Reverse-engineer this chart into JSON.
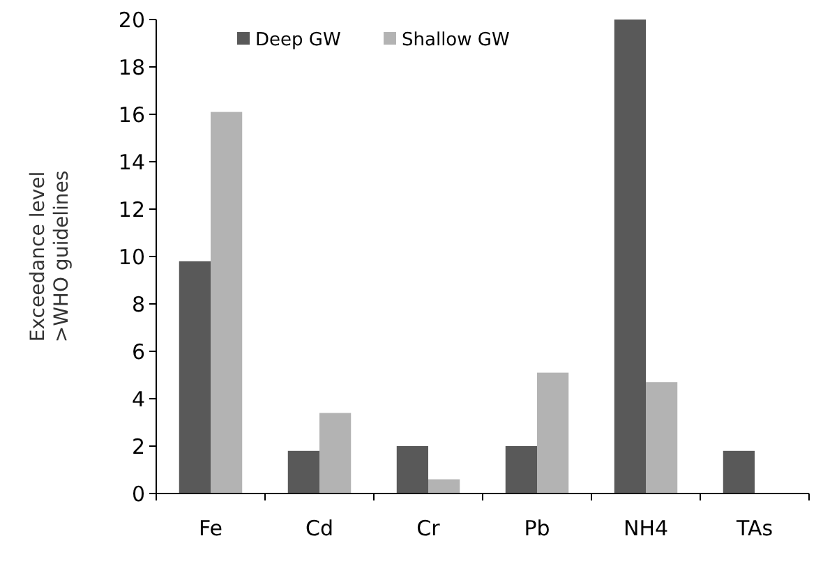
{
  "chart_data": {
    "type": "bar",
    "ylabel": "Exceedance level\n>WHO guidelines",
    "categories": [
      "Fe",
      "Cd",
      "Cr",
      "Pb",
      "NH4",
      "TAs"
    ],
    "series": [
      {
        "name": "Deep GW",
        "color": "#595959",
        "values": [
          9.8,
          1.8,
          2.0,
          2.0,
          20,
          1.8
        ]
      },
      {
        "name": "Shallow GW",
        "color": "#b3b3b3",
        "values": [
          16.1,
          3.4,
          0.6,
          5.1,
          4.7,
          0
        ]
      }
    ],
    "ylim": [
      0,
      20
    ],
    "yticks": [
      0,
      2,
      4,
      6,
      8,
      10,
      12,
      14,
      16,
      18,
      20
    ],
    "legend": "top"
  }
}
